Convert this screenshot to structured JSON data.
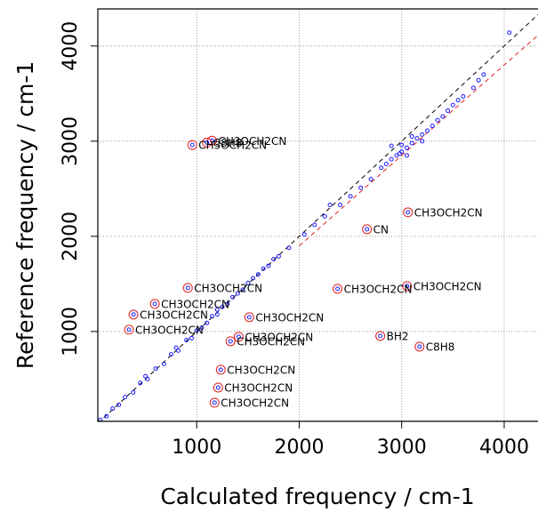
{
  "chart_data": {
    "type": "scatter",
    "x_label": "Calculated frequency / cm-1",
    "y_label": "Reference frequency / cm-1",
    "xlim": [
      35,
      4330
    ],
    "ylim": [
      56,
      4390
    ],
    "xticks": [
      1000,
      2000,
      3000,
      4000
    ],
    "yticks": [
      1000,
      2000,
      3000,
      4000
    ],
    "grid": true,
    "reference_lines": [
      {
        "slope": 1,
        "from": 35,
        "color": "#000000"
      },
      {
        "slope": 0.95,
        "from": 2000,
        "color": "#e02020"
      }
    ],
    "series": [
      {
        "color": "#1a1aff",
        "x": [
          60,
          120,
          180,
          240,
          300,
          380,
          450,
          520,
          600,
          680,
          750,
          820,
          900,
          950,
          1000,
          1050,
          1100,
          1150,
          1200,
          1250,
          1300,
          1350,
          1400,
          1450,
          1500,
          1550,
          1600,
          1650,
          1700,
          1750,
          1800,
          1900,
          2050,
          2150,
          2250,
          2300,
          2400,
          2500,
          2600,
          2700,
          2800,
          2850,
          2900,
          2950,
          3000,
          3050,
          3100,
          3150,
          3200,
          3250,
          3300,
          3350,
          3400,
          3450,
          3500,
          3550,
          3600,
          3700,
          3750,
          3800,
          4050,
          2900,
          3000,
          3100,
          3050,
          1200,
          800,
          500,
          3200,
          2980
        ],
        "values": [
          70,
          110,
          190,
          230,
          310,
          360,
          460,
          500,
          610,
          660,
          760,
          800,
          910,
          930,
          1010,
          1040,
          1090,
          1160,
          1180,
          1260,
          1290,
          1360,
          1400,
          1440,
          1510,
          1560,
          1600,
          1660,
          1690,
          1760,
          1790,
          1880,
          2020,
          2120,
          2210,
          2330,
          2330,
          2420,
          2510,
          2600,
          2720,
          2760,
          2810,
          2850,
          2890,
          2930,
          2980,
          3030,
          3070,
          3110,
          3160,
          3220,
          3260,
          3320,
          3380,
          3430,
          3470,
          3560,
          3640,
          3700,
          4140,
          2950,
          2960,
          3050,
          2850,
          1230,
          830,
          530,
          3000,
          2870
        ]
      },
      {
        "color": "#1a1aff",
        "ring_color": "#e02020",
        "x": [
          957,
          1150,
          1100,
          3061,
          2661,
          913,
          591,
          383,
          339,
          2374,
          3052,
          1513,
          1409,
          1330,
          2791,
          3174,
          1235,
          1209,
          1174
        ],
        "values": [
          2960,
          3005,
          2985,
          2252,
          2075,
          1458,
          1290,
          1178,
          1019,
          1449,
          1477,
          1150,
          944,
          897,
          953,
          841,
          598,
          411,
          252
        ],
        "labels": [
          "CH3OCH2CN",
          "CH3OCH2CN",
          "C8H8",
          "CH3OCH2CN",
          "CN",
          "CH3OCH2CN",
          "CH3OCH2CN",
          "CH3OCH2CN",
          "CH3OCH2CN",
          "CH3OCH2CN",
          "CH3OCH2CN",
          "CH3OCH2CN",
          "CH3OCH2CN",
          "CH3OCH2CN",
          "BH2",
          "C8H8",
          "CH3OCH2CN",
          "CH3OCH2CN",
          "CH3OCH2CN"
        ]
      }
    ]
  }
}
